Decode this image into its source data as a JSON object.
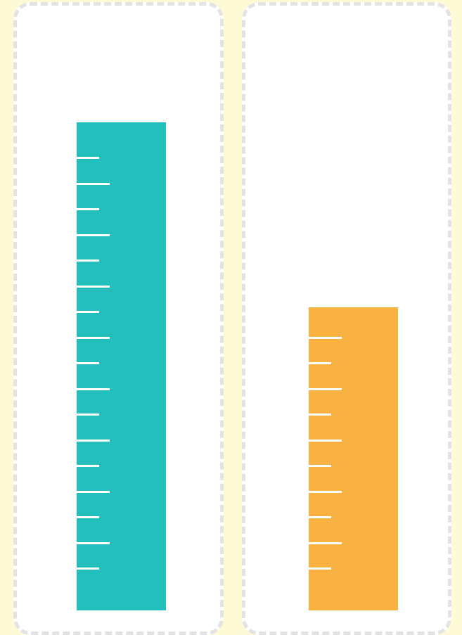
{
  "colors": {
    "page_background": "#fffad6",
    "card_background": "#ffffff",
    "card_border": "#e3e3e3",
    "bar_left": "#22bfbc",
    "bar_right": "#f9b242",
    "tick": "#ffffff"
  },
  "measures": [
    {
      "id": "left",
      "color": "#22bfbc",
      "level": 19,
      "marks": 17
    },
    {
      "id": "right",
      "color": "#f9b242",
      "level": 11.8,
      "marks": 10
    }
  ]
}
